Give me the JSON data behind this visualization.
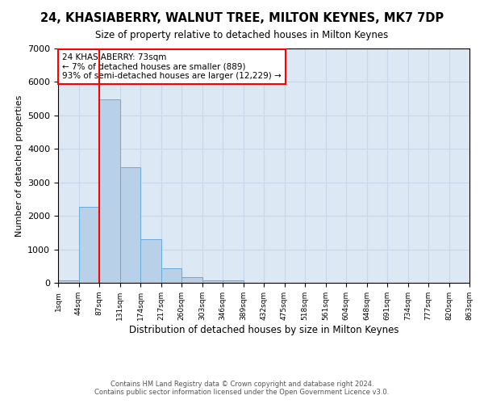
{
  "title": "24, KHASIABERRY, WALNUT TREE, MILTON KEYNES, MK7 7DP",
  "subtitle": "Size of property relative to detached houses in Milton Keynes",
  "xlabel": "Distribution of detached houses by size in Milton Keynes",
  "ylabel": "Number of detached properties",
  "footer_line1": "Contains HM Land Registry data © Crown copyright and database right 2024.",
  "footer_line2": "Contains public sector information licensed under the Open Government Licence v3.0.",
  "bin_labels": [
    "1sqm",
    "44sqm",
    "87sqm",
    "131sqm",
    "174sqm",
    "217sqm",
    "260sqm",
    "303sqm",
    "346sqm",
    "389sqm",
    "432sqm",
    "475sqm",
    "518sqm",
    "561sqm",
    "604sqm",
    "648sqm",
    "691sqm",
    "734sqm",
    "777sqm",
    "820sqm",
    "863sqm"
  ],
  "bar_heights": [
    75,
    2280,
    5470,
    3440,
    1310,
    430,
    160,
    80,
    70,
    0,
    0,
    0,
    0,
    0,
    0,
    0,
    0,
    0,
    0,
    0
  ],
  "bar_color": "#b8d0e8",
  "bar_edge_color": "#6aaad4",
  "grid_color": "#c8d8ea",
  "background_color": "#dce8f4",
  "annotation_text": "24 KHASIABERRY: 73sqm\n← 7% of detached houses are smaller (889)\n93% of semi-detached houses are larger (12,229) →",
  "annotation_box_color": "white",
  "annotation_box_edge_color": "red",
  "vline_x": 2.0,
  "vline_color": "red",
  "ylim": [
    0,
    7000
  ],
  "yticks": [
    0,
    1000,
    2000,
    3000,
    4000,
    5000,
    6000,
    7000
  ]
}
